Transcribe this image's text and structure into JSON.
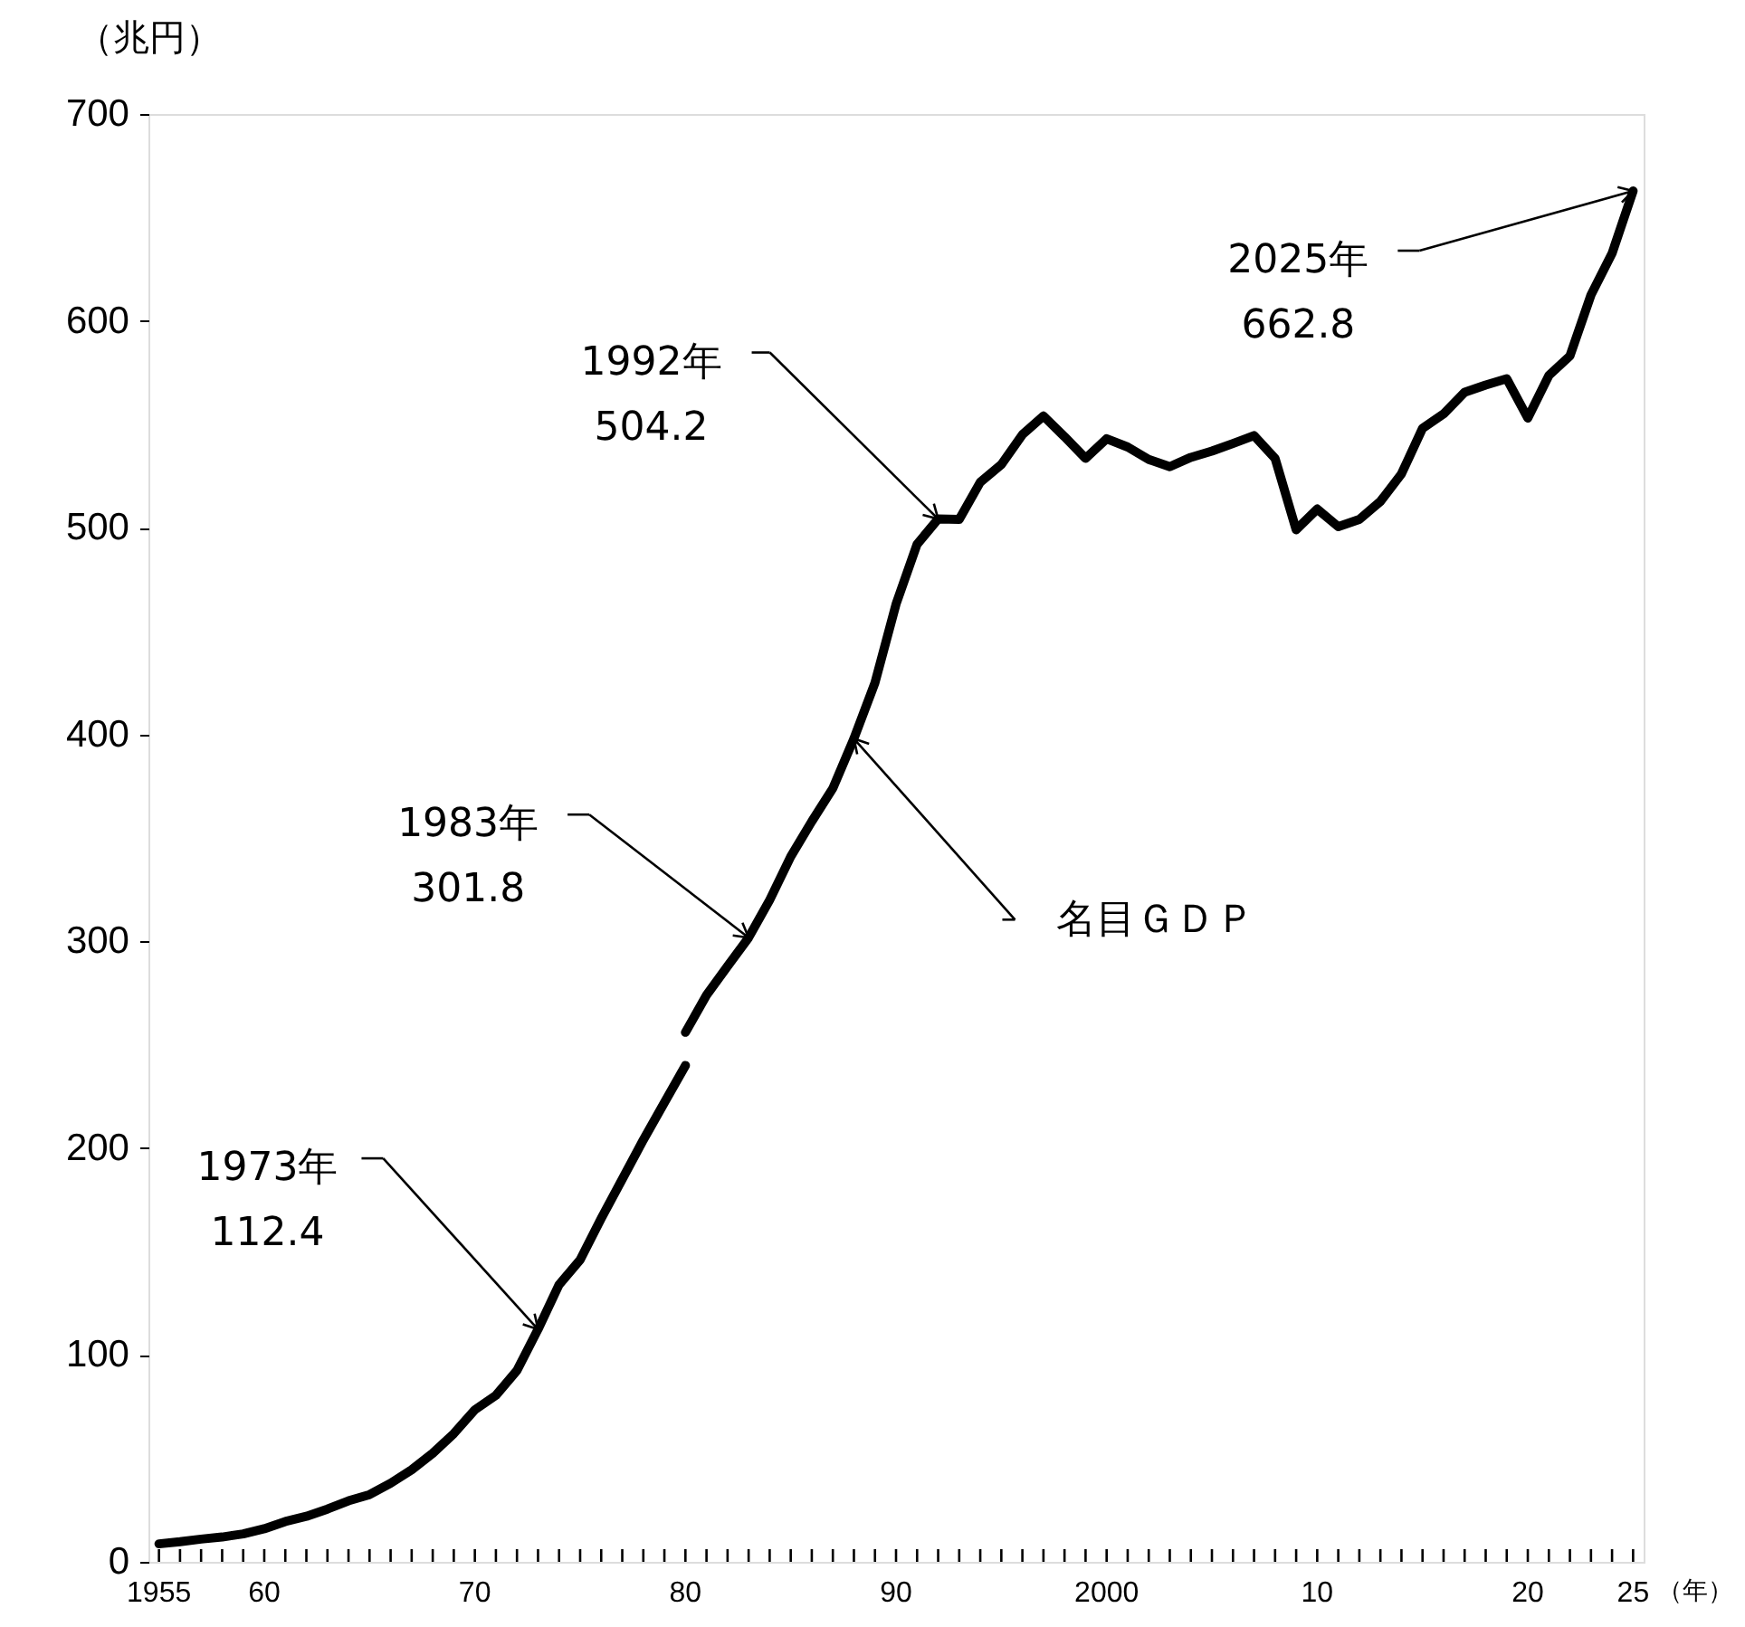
{
  "chart_data": {
    "type": "line",
    "xlabel": "（年）",
    "ylabel": "（兆円）",
    "xlim": [
      1954.5,
      2025.5
    ],
    "ylim": [
      0,
      700
    ],
    "yticks": [
      0,
      100,
      200,
      300,
      400,
      500,
      600,
      700
    ],
    "xticks": [
      {
        "value": 1955,
        "label": "1955"
      },
      {
        "value": 1956,
        "label": null
      },
      {
        "value": 1957,
        "label": null
      },
      {
        "value": 1958,
        "label": null
      },
      {
        "value": 1959,
        "label": null
      },
      {
        "value": 1960,
        "label": "60"
      },
      {
        "value": 1961,
        "label": null
      },
      {
        "value": 1962,
        "label": null
      },
      {
        "value": 1963,
        "label": null
      },
      {
        "value": 1964,
        "label": null
      },
      {
        "value": 1965,
        "label": null
      },
      {
        "value": 1966,
        "label": null
      },
      {
        "value": 1967,
        "label": null
      },
      {
        "value": 1968,
        "label": null
      },
      {
        "value": 1969,
        "label": null
      },
      {
        "value": 1970,
        "label": "70"
      },
      {
        "value": 1971,
        "label": null
      },
      {
        "value": 1972,
        "label": null
      },
      {
        "value": 1973,
        "label": null
      },
      {
        "value": 1974,
        "label": null
      },
      {
        "value": 1975,
        "label": null
      },
      {
        "value": 1976,
        "label": null
      },
      {
        "value": 1977,
        "label": null
      },
      {
        "value": 1978,
        "label": null
      },
      {
        "value": 1979,
        "label": null
      },
      {
        "value": 1980,
        "label": "80"
      },
      {
        "value": 1981,
        "label": null
      },
      {
        "value": 1982,
        "label": null
      },
      {
        "value": 1983,
        "label": null
      },
      {
        "value": 1984,
        "label": null
      },
      {
        "value": 1985,
        "label": null
      },
      {
        "value": 1986,
        "label": null
      },
      {
        "value": 1987,
        "label": null
      },
      {
        "value": 1988,
        "label": null
      },
      {
        "value": 1989,
        "label": null
      },
      {
        "value": 1990,
        "label": "90"
      },
      {
        "value": 1991,
        "label": null
      },
      {
        "value": 1992,
        "label": null
      },
      {
        "value": 1993,
        "label": null
      },
      {
        "value": 1994,
        "label": null
      },
      {
        "value": 1995,
        "label": null
      },
      {
        "value": 1996,
        "label": null
      },
      {
        "value": 1997,
        "label": null
      },
      {
        "value": 1998,
        "label": null
      },
      {
        "value": 1999,
        "label": null
      },
      {
        "value": 2000,
        "label": "2000"
      },
      {
        "value": 2001,
        "label": null
      },
      {
        "value": 2002,
        "label": null
      },
      {
        "value": 2003,
        "label": null
      },
      {
        "value": 2004,
        "label": null
      },
      {
        "value": 2005,
        "label": null
      },
      {
        "value": 2006,
        "label": null
      },
      {
        "value": 2007,
        "label": null
      },
      {
        "value": 2008,
        "label": null
      },
      {
        "value": 2009,
        "label": null
      },
      {
        "value": 2010,
        "label": "10"
      },
      {
        "value": 2011,
        "label": null
      },
      {
        "value": 2012,
        "label": null
      },
      {
        "value": 2013,
        "label": null
      },
      {
        "value": 2014,
        "label": null
      },
      {
        "value": 2015,
        "label": null
      },
      {
        "value": 2016,
        "label": null
      },
      {
        "value": 2017,
        "label": null
      },
      {
        "value": 2018,
        "label": null
      },
      {
        "value": 2019,
        "label": null
      },
      {
        "value": 2020,
        "label": "20"
      },
      {
        "value": 2021,
        "label": null
      },
      {
        "value": 2022,
        "label": null
      },
      {
        "value": 2023,
        "label": null
      },
      {
        "value": 2024,
        "label": null
      },
      {
        "value": 2025,
        "label": "25"
      }
    ],
    "series": [
      {
        "color": "#000000",
        "x": [
          1955,
          1956,
          1957,
          1958,
          1959,
          1960,
          1961,
          1962,
          1963,
          1964,
          1965,
          1966,
          1967,
          1968,
          1969,
          1970,
          1971,
          1972,
          1973,
          1974,
          1975,
          1976,
          1977,
          1978,
          1979,
          1980
        ],
        "values": [
          8.7,
          9.7,
          11.0,
          12.0,
          13.5,
          16.0,
          19.5,
          22,
          25.5,
          29.5,
          32.5,
          38,
          44.5,
          52.5,
          62,
          73.5,
          80.5,
          92.5,
          112.4,
          134,
          146,
          166,
          185,
          204,
          222,
          240
        ]
      },
      {
        "color": "#000000",
        "x": [
          1980,
          1981,
          1982,
          1983,
          1984,
          1985,
          1986,
          1987,
          1988,
          1989,
          1990,
          1991,
          1992,
          1993,
          1994,
          1995,
          1996,
          1997,
          1998,
          1999,
          2000,
          2001,
          2002,
          2003,
          2004,
          2005,
          2006,
          2007,
          2008,
          2009,
          2010,
          2011,
          2012,
          2013,
          2014,
          2015,
          2016,
          2017,
          2018,
          2019,
          2020,
          2021,
          2022,
          2023,
          2024,
          2025
        ],
        "values": [
          256,
          274,
          288,
          301.8,
          320,
          341,
          358,
          374,
          398,
          425,
          463,
          492,
          504.2,
          504,
          522,
          530.5,
          545,
          554,
          544,
          533.5,
          543,
          539,
          533,
          529.5,
          534,
          537,
          540.7,
          544.5,
          533.5,
          499,
          509,
          500.5,
          504,
          512.7,
          526,
          548,
          555,
          565.5,
          569,
          572,
          553,
          573.6,
          583,
          612.5,
          632.6,
          662.8
        ]
      }
    ],
    "annotations": [
      {
        "text": "1973年\n112.4",
        "x": 1973,
        "y": 112.4
      },
      {
        "text": "1983年\n301.8",
        "x": 1983,
        "y": 301.8
      },
      {
        "text": "1992年\n504.2",
        "x": 1992,
        "y": 504.2
      },
      {
        "text": "2025年\n662.8",
        "x": 2025,
        "y": 662.8
      },
      {
        "text": "名目ＧＤＰ",
        "x": 1988,
        "y": 398
      }
    ]
  }
}
